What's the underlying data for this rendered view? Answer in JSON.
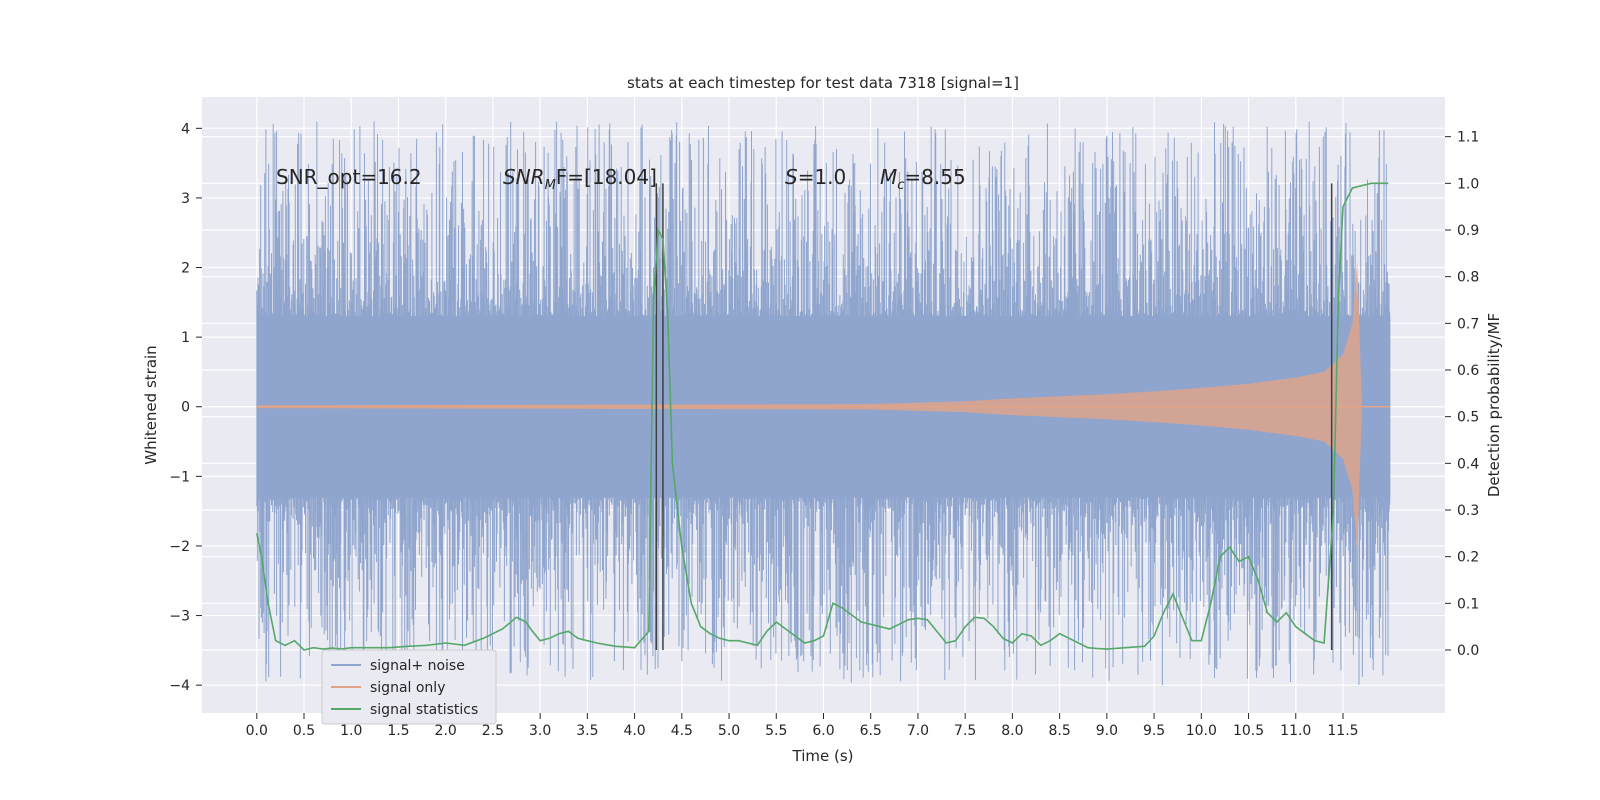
{
  "chart_data": {
    "type": "line",
    "title": "stats at each timestep for test data 7318 [signal=1]",
    "xlabel": "Time (s)",
    "ylabel": "Whitened strain",
    "y2label": "Detection probability/MF",
    "xlim": [
      -0.58,
      12.58
    ],
    "ylim": [
      -4.4,
      4.45
    ],
    "y2lim": [
      -0.135,
      1.185
    ],
    "x_ticks": [
      "0.0",
      "0.5",
      "1.0",
      "1.5",
      "2.0",
      "2.5",
      "3.0",
      "3.5",
      "4.0",
      "4.5",
      "5.0",
      "5.5",
      "6.0",
      "6.5",
      "7.0",
      "7.5",
      "8.0",
      "8.5",
      "9.0",
      "9.5",
      "10.0",
      "10.5",
      "11.0",
      "11.5"
    ],
    "y_ticks": [
      "4",
      "3",
      "2",
      "1",
      "0",
      "−1",
      "−2",
      "−3",
      "−4"
    ],
    "y2_ticks": [
      "1.1",
      "1.0",
      "0.9",
      "0.8",
      "0.7",
      "0.6",
      "0.5",
      "0.4",
      "0.3",
      "0.2",
      "0.1",
      "0.0"
    ],
    "grid": true,
    "legend_placement": "lower-left",
    "annotations": {
      "snr_opt": "SNR_opt=16.2",
      "snr_mf_label": "SNR",
      "snr_mf_sub": "M",
      "snr_mf_value": "F=[18.04]",
      "s_label": "S",
      "s_value": "=1.0",
      "mc_label": "M",
      "mc_sub": "c",
      "mc_value": "=8.55"
    },
    "noise_band": {
      "x_start": 0.0,
      "x_end": 12.0,
      "core_low": -1.3,
      "core_high": 1.3,
      "peak_high": 4.1,
      "peak_low": -4.0
    },
    "signal_envelope": {
      "x": [
        0.0,
        6.5,
        7.5,
        8.0,
        8.5,
        9.0,
        9.5,
        10.0,
        10.5,
        11.0,
        11.3,
        11.5,
        11.6,
        11.65,
        11.7
      ],
      "amp": [
        0.02,
        0.04,
        0.08,
        0.12,
        0.15,
        0.18,
        0.22,
        0.27,
        0.33,
        0.42,
        0.5,
        0.75,
        1.2,
        2.1,
        0.0
      ]
    },
    "markers": [
      4.23,
      4.3,
      11.38
    ],
    "series": [
      {
        "name": "signal+ noise",
        "color": "#8fa5cd"
      },
      {
        "name": "signal only",
        "color": "#e1a487"
      },
      {
        "name": "signal statistics",
        "color": "#55a868",
        "axis": "right",
        "x": [
          0.0,
          0.05,
          0.12,
          0.2,
          0.3,
          0.4,
          0.5,
          0.6,
          0.7,
          0.8,
          0.9,
          1.0,
          1.2,
          1.4,
          1.6,
          1.8,
          2.0,
          2.2,
          2.4,
          2.6,
          2.75,
          2.85,
          2.9,
          3.0,
          3.1,
          3.2,
          3.3,
          3.4,
          3.5,
          3.6,
          3.8,
          4.0,
          4.15,
          4.2,
          4.25,
          4.3,
          4.35,
          4.4,
          4.5,
          4.6,
          4.7,
          4.8,
          4.9,
          5.0,
          5.1,
          5.2,
          5.3,
          5.4,
          5.5,
          5.6,
          5.7,
          5.8,
          5.9,
          6.0,
          6.1,
          6.2,
          6.3,
          6.4,
          6.5,
          6.6,
          6.7,
          6.8,
          6.9,
          7.0,
          7.1,
          7.2,
          7.3,
          7.4,
          7.5,
          7.6,
          7.7,
          7.8,
          7.9,
          8.0,
          8.1,
          8.2,
          8.3,
          8.4,
          8.5,
          8.6,
          8.7,
          8.8,
          8.9,
          9.0,
          9.2,
          9.4,
          9.5,
          9.6,
          9.7,
          9.8,
          9.9,
          10.0,
          10.1,
          10.2,
          10.3,
          10.4,
          10.5,
          10.6,
          10.7,
          10.8,
          10.9,
          11.0,
          11.1,
          11.2,
          11.3,
          11.4,
          11.45,
          11.5,
          11.6,
          11.8,
          11.98
        ],
        "y": [
          0.25,
          0.2,
          0.1,
          0.02,
          0.01,
          0.02,
          0.0,
          0.005,
          0.002,
          0.004,
          0.002,
          0.005,
          0.005,
          0.005,
          0.008,
          0.01,
          0.015,
          0.01,
          0.025,
          0.045,
          0.07,
          0.06,
          0.045,
          0.02,
          0.025,
          0.035,
          0.04,
          0.025,
          0.02,
          0.015,
          0.008,
          0.005,
          0.04,
          0.75,
          0.9,
          0.88,
          0.72,
          0.4,
          0.22,
          0.1,
          0.05,
          0.035,
          0.025,
          0.02,
          0.02,
          0.015,
          0.01,
          0.04,
          0.06,
          0.045,
          0.03,
          0.015,
          0.02,
          0.03,
          0.1,
          0.09,
          0.075,
          0.06,
          0.055,
          0.05,
          0.045,
          0.055,
          0.065,
          0.068,
          0.065,
          0.04,
          0.015,
          0.02,
          0.05,
          0.07,
          0.068,
          0.05,
          0.025,
          0.015,
          0.035,
          0.03,
          0.01,
          0.02,
          0.035,
          0.025,
          0.015,
          0.005,
          0.003,
          0.002,
          0.005,
          0.008,
          0.03,
          0.08,
          0.12,
          0.07,
          0.02,
          0.02,
          0.1,
          0.2,
          0.22,
          0.19,
          0.2,
          0.15,
          0.08,
          0.06,
          0.08,
          0.05,
          0.035,
          0.02,
          0.015,
          0.3,
          0.75,
          0.95,
          0.99,
          1.0,
          1.0
        ]
      }
    ]
  }
}
